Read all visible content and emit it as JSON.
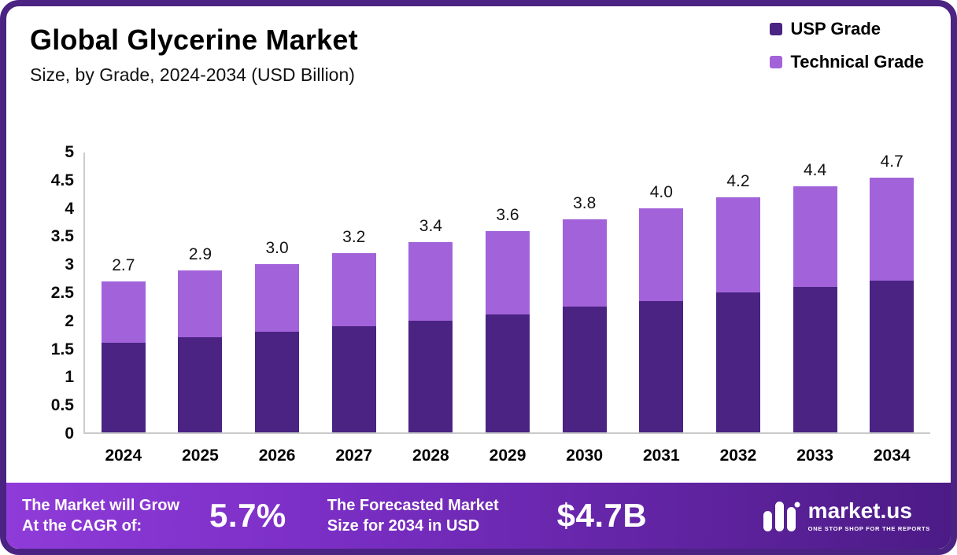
{
  "header": {
    "title": "Global Glycerine Market",
    "subtitle": "Size, by Grade, 2024-2034 (USD Billion)"
  },
  "legend": [
    {
      "label": "USP Grade",
      "color": "#4A2383"
    },
    {
      "label": "Technical Grade",
      "color": "#A263DA"
    }
  ],
  "chart_data": {
    "type": "bar",
    "stacked": true,
    "title": "Global Glycerine Market",
    "subtitle": "Size, by Grade, 2024-2034 (USD Billion)",
    "categories": [
      "2024",
      "2025",
      "2026",
      "2027",
      "2028",
      "2029",
      "2030",
      "2031",
      "2032",
      "2033",
      "2034"
    ],
    "series": [
      {
        "name": "USP Grade",
        "color": "#4A2383",
        "values": [
          1.6,
          1.7,
          1.8,
          1.9,
          2.0,
          2.1,
          2.25,
          2.35,
          2.5,
          2.6,
          2.8
        ]
      },
      {
        "name": "Technical Grade",
        "color": "#A263DA",
        "values": [
          1.1,
          1.2,
          1.2,
          1.3,
          1.4,
          1.5,
          1.55,
          1.65,
          1.7,
          1.8,
          1.9
        ]
      }
    ],
    "totals": [
      2.7,
      2.9,
      3.0,
      3.2,
      3.4,
      3.6,
      3.8,
      4.0,
      4.2,
      4.4,
      4.7
    ],
    "totals_labels": [
      "2.7",
      "2.9",
      "3.0",
      "3.2",
      "3.4",
      "3.6",
      "3.8",
      "4.0",
      "4.2",
      "4.4",
      "4.7"
    ],
    "ylim": [
      0,
      5
    ],
    "y_ticks": [
      "0",
      "0.5",
      "1",
      "1.5",
      "2",
      "2.5",
      "3",
      "3.5",
      "4",
      "4.5",
      "5"
    ],
    "grid": false,
    "legend_position": "top-right"
  },
  "footer": {
    "cagr_label": "The Market will Grow\nAt the CAGR of:",
    "cagr_value": "5.7%",
    "forecast_label": "The Forecasted Market\nSize for 2034 in USD",
    "forecast_value": "$4.7B",
    "brand": {
      "name": "market.us",
      "tagline": "ONE STOP SHOP FOR THE REPORTS"
    }
  }
}
